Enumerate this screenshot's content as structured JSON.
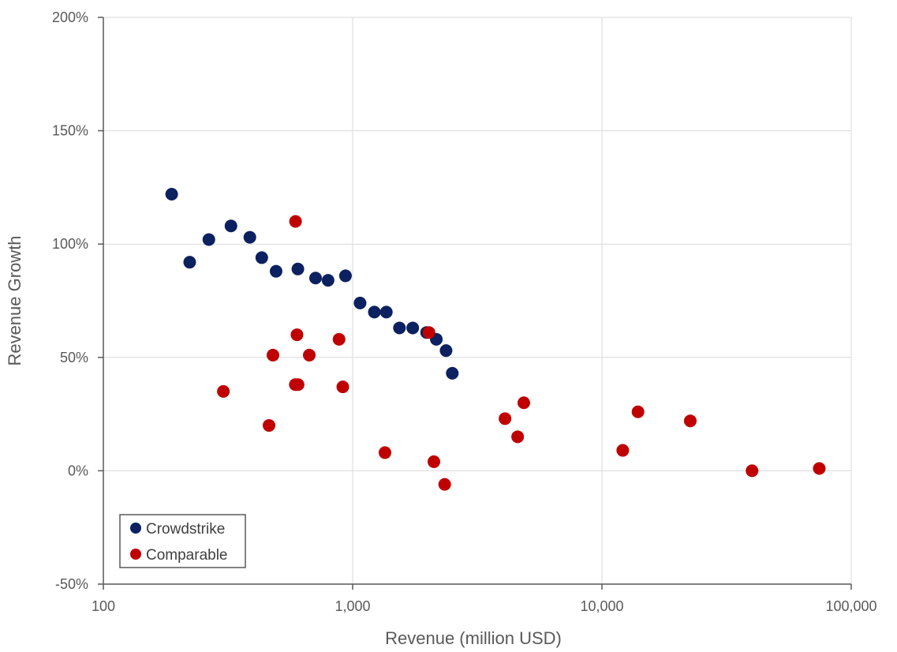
{
  "chart_data": {
    "type": "scatter",
    "xlabel": "Revenue (million USD)",
    "ylabel": "Revenue Growth",
    "x_scale": "log",
    "xlim": [
      100,
      100000
    ],
    "ylim": [
      -50,
      200
    ],
    "x_ticks": [
      100,
      1000,
      10000,
      100000
    ],
    "x_tick_labels": [
      "100",
      "1,000",
      "10,000",
      "100,000"
    ],
    "y_ticks": [
      -50,
      0,
      50,
      100,
      150,
      200
    ],
    "y_tick_labels": [
      "-50%",
      "0%",
      "50%",
      "100%",
      "150%",
      "200%"
    ],
    "grid": true,
    "legend_position": "bottom-left",
    "colors": {
      "Crowdstrike": "#0b2160",
      "Comparable": "#c00000"
    },
    "series": [
      {
        "name": "Crowdstrike",
        "color": "#0b2160",
        "points": [
          [
            188,
            122
          ],
          [
            222,
            92
          ],
          [
            265,
            102
          ],
          [
            325,
            108
          ],
          [
            387,
            103
          ],
          [
            432,
            94
          ],
          [
            493,
            88
          ],
          [
            603,
            89
          ],
          [
            710,
            85
          ],
          [
            797,
            84
          ],
          [
            936,
            86
          ],
          [
            1071,
            74
          ],
          [
            1222,
            70
          ],
          [
            1365,
            70
          ],
          [
            1541,
            63
          ],
          [
            1742,
            63
          ],
          [
            1980,
            61
          ],
          [
            2166,
            58
          ],
          [
            2370,
            53
          ],
          [
            2510,
            43
          ]
        ]
      },
      {
        "name": "Comparable",
        "color": "#c00000",
        "points": [
          [
            590,
            110
          ],
          [
            598,
            60
          ],
          [
            479,
            51
          ],
          [
            670,
            51
          ],
          [
            882,
            58
          ],
          [
            589,
            38
          ],
          [
            604,
            38
          ],
          [
            913,
            37
          ],
          [
            303,
            35
          ],
          [
            462,
            20
          ],
          [
            2024,
            61
          ],
          [
            1348,
            8
          ],
          [
            2118,
            4
          ],
          [
            2340,
            -6
          ],
          [
            4085,
            23
          ],
          [
            4860,
            30
          ],
          [
            4590,
            15
          ],
          [
            12120,
            9
          ],
          [
            13950,
            26
          ],
          [
            22610,
            22
          ],
          [
            40000,
            0
          ],
          [
            74430,
            1
          ]
        ]
      }
    ]
  }
}
